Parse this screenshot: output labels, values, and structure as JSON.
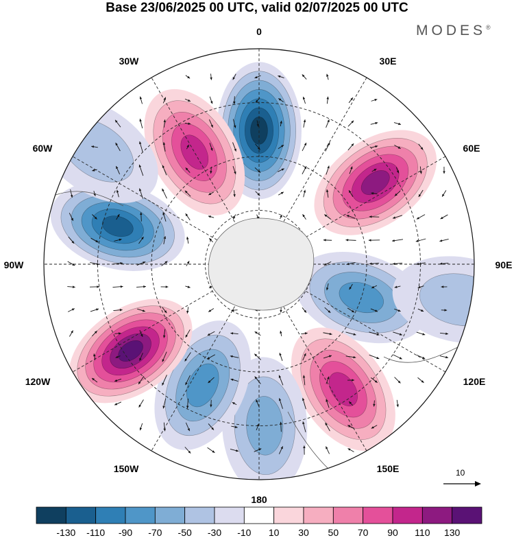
{
  "title": "Base 23/06/2025 00 UTC, valid 02/07/2025 00 UTC",
  "brand": "MODES",
  "brand_mark": "®",
  "longitude_labels": [
    "0",
    "30E",
    "60E",
    "90E",
    "120E",
    "150E",
    "180",
    "150W",
    "120W",
    "90W",
    "60W",
    "30W"
  ],
  "reference_vector_label": "10",
  "colorbar": {
    "colors": [
      "#0f3f5f",
      "#1a5f8f",
      "#2f7fb5",
      "#4f96c8",
      "#7fadd5",
      "#afc3e3",
      "#dcdcef",
      "#ffffff",
      "#fad6dc",
      "#f6aec0",
      "#ef80aa",
      "#e4509a",
      "#c3268c",
      "#8d1a80",
      "#5a1275"
    ],
    "tick_labels": [
      "-130",
      "-110",
      "-90",
      "-70",
      "-50",
      "-30",
      "-10",
      "10",
      "30",
      "50",
      "70",
      "90",
      "110",
      "130"
    ]
  },
  "anomalies": [
    {
      "bearing": 0,
      "dist": 0.62,
      "value": -130
    },
    {
      "bearing": 55,
      "dist": 0.66,
      "value": 110
    },
    {
      "bearing": 108,
      "dist": 0.5,
      "value": -80
    },
    {
      "bearing": 100,
      "dist": 0.95,
      "value": -45
    },
    {
      "bearing": 146,
      "dist": 0.7,
      "value": 95
    },
    {
      "bearing": 178,
      "dist": 0.75,
      "value": -50
    },
    {
      "bearing": 205,
      "dist": 0.62,
      "value": -80
    },
    {
      "bearing": 236,
      "dist": 0.72,
      "value": 130
    },
    {
      "bearing": 285,
      "dist": 0.68,
      "value": -110
    },
    {
      "bearing": 330,
      "dist": 0.6,
      "value": 95
    },
    {
      "bearing": 305,
      "dist": 0.92,
      "value": -35
    }
  ]
}
